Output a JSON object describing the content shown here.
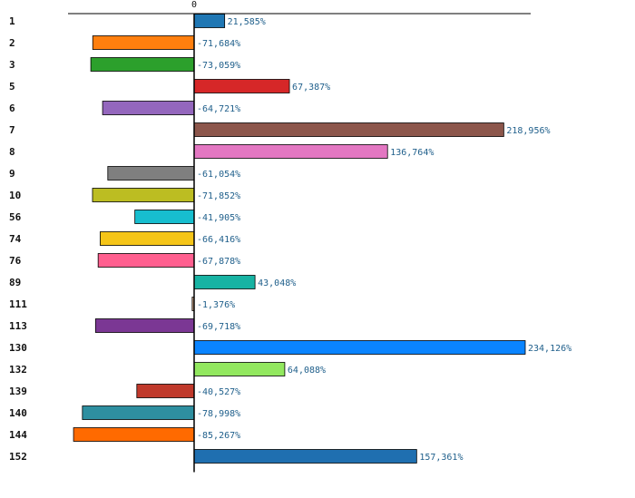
{
  "chart_data": {
    "type": "bar",
    "orientation": "horizontal",
    "title": "",
    "xlabel": "",
    "ylabel": "",
    "zero_tick_label": "0",
    "grid": false,
    "legend": "none",
    "categories": [
      "1",
      "2",
      "3",
      "5",
      "6",
      "7",
      "8",
      "9",
      "10",
      "56",
      "74",
      "76",
      "89",
      "111",
      "113",
      "130",
      "132",
      "139",
      "140",
      "144",
      "152"
    ],
    "values": [
      21.585,
      -71.684,
      -73.059,
      67.387,
      -64.721,
      218.956,
      136.764,
      -61.054,
      -71.852,
      -41.905,
      -66.416,
      -67.878,
      43.048,
      -1.376,
      -69.718,
      234.126,
      64.088,
      -40.527,
      -78.998,
      -85.267,
      157.361
    ],
    "value_labels": [
      "21,585%",
      "-71,684%",
      "-73,059%",
      "67,387%",
      "-64,721%",
      "218,956%",
      "136,764%",
      "-61,054%",
      "-71,852%",
      "-41,905%",
      "-66,416%",
      "-67,878%",
      "43,048%",
      "-1,376%",
      "-69,718%",
      "234,126%",
      "64,088%",
      "-40,527%",
      "-78,998%",
      "-85,267%",
      "157,361%"
    ],
    "colors": [
      "#1f77b4",
      "#ff7f0e",
      "#2ca02c",
      "#d62728",
      "#9467bd",
      "#8c564b",
      "#e377c2",
      "#7f7f7f",
      "#bcbd22",
      "#17becf",
      "#f5c518",
      "#ff5f8f",
      "#17b3a3",
      "#c8a080",
      "#7b3794",
      "#0a84ff",
      "#92e85f",
      "#c0392b",
      "#2e8fa0",
      "#ff6a00",
      "#1f6fb0"
    ],
    "xlim": [
      -88,
      238
    ],
    "label_color": "#1f5f8b"
  }
}
